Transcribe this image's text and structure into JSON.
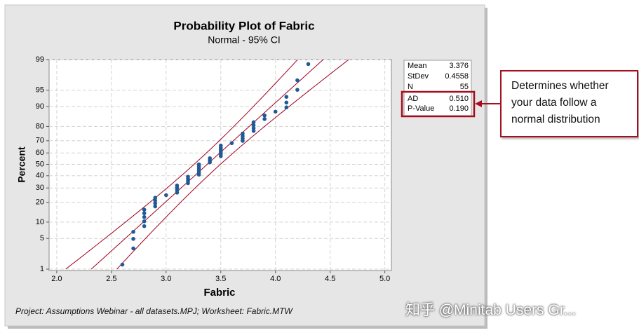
{
  "chart_data": {
    "type": "probability",
    "title": "Probability Plot of Fabric",
    "subtitle": "Normal - 95% CI",
    "x_label": "Fabric",
    "y_label": "Percent",
    "x": [
      2.6,
      2.7,
      2.7,
      2.7,
      2.8,
      2.8,
      2.8,
      2.8,
      2.8,
      2.9,
      2.9,
      2.9,
      2.9,
      3.0,
      3.1,
      3.1,
      3.1,
      3.1,
      3.2,
      3.2,
      3.2,
      3.2,
      3.3,
      3.3,
      3.3,
      3.3,
      3.3,
      3.3,
      3.4,
      3.4,
      3.4,
      3.5,
      3.5,
      3.5,
      3.5,
      3.5,
      3.5,
      3.6,
      3.7,
      3.7,
      3.7,
      3.7,
      3.8,
      3.8,
      3.8,
      3.8,
      3.9,
      3.9,
      4.0,
      4.1,
      4.1,
      4.1,
      4.2,
      4.2,
      4.3
    ],
    "values": [
      1.3,
      3.1,
      4.9,
      6.7,
      8.5,
      10.3,
      12.1,
      13.9,
      15.7,
      17.5,
      19.3,
      21.1,
      22.9,
      24.7,
      26.5,
      28.3,
      30.1,
      31.9,
      33.8,
      35.6,
      37.4,
      39.2,
      41.0,
      42.8,
      44.6,
      46.4,
      48.2,
      50.0,
      51.8,
      53.6,
      55.4,
      57.2,
      59.0,
      60.8,
      62.6,
      64.4,
      66.2,
      68.1,
      69.9,
      71.7,
      73.5,
      75.3,
      77.1,
      78.9,
      80.7,
      82.5,
      84.3,
      86.1,
      87.9,
      89.7,
      91.5,
      93.3,
      95.1,
      96.9,
      98.7
    ],
    "color": "#1f5a96",
    "line_color": "#a0001e",
    "xlim": [
      1.93,
      5.06
    ],
    "ylim": [
      1,
      99
    ],
    "xticks": [
      {
        "value": 2,
        "label": "2.0"
      },
      2.5,
      {
        "value": 3,
        "label": "3.0"
      },
      3.5,
      {
        "value": 4,
        "label": "4.0"
      },
      4.5,
      {
        "value": 5,
        "label": "5.0"
      }
    ],
    "yticks": [
      1,
      5,
      10,
      20,
      30,
      40,
      50,
      60,
      70,
      80,
      90,
      95,
      99
    ],
    "grid": true,
    "stats": {
      "mean": {
        "name": "Mean",
        "value": 3.376
      },
      "stdev": {
        "name": "StDev",
        "value": 0.4558
      },
      "n": {
        "name": "N",
        "value": 55
      },
      "ad": {
        "name": "AD",
        "value": {
          "value": 0.51,
          "label": "0.510"
        }
      },
      "p_value": {
        "name": "P-Value",
        "value": {
          "value": 0.19,
          "label": "0.190"
        }
      }
    }
  },
  "annotation": "Determines whether your data follow a normal distribution",
  "footer": "Project: Assumptions Webinar - all datasets.MPJ; Worksheet: Fabric.MTW",
  "watermark": "知乎 @Minitab Users Gr..."
}
